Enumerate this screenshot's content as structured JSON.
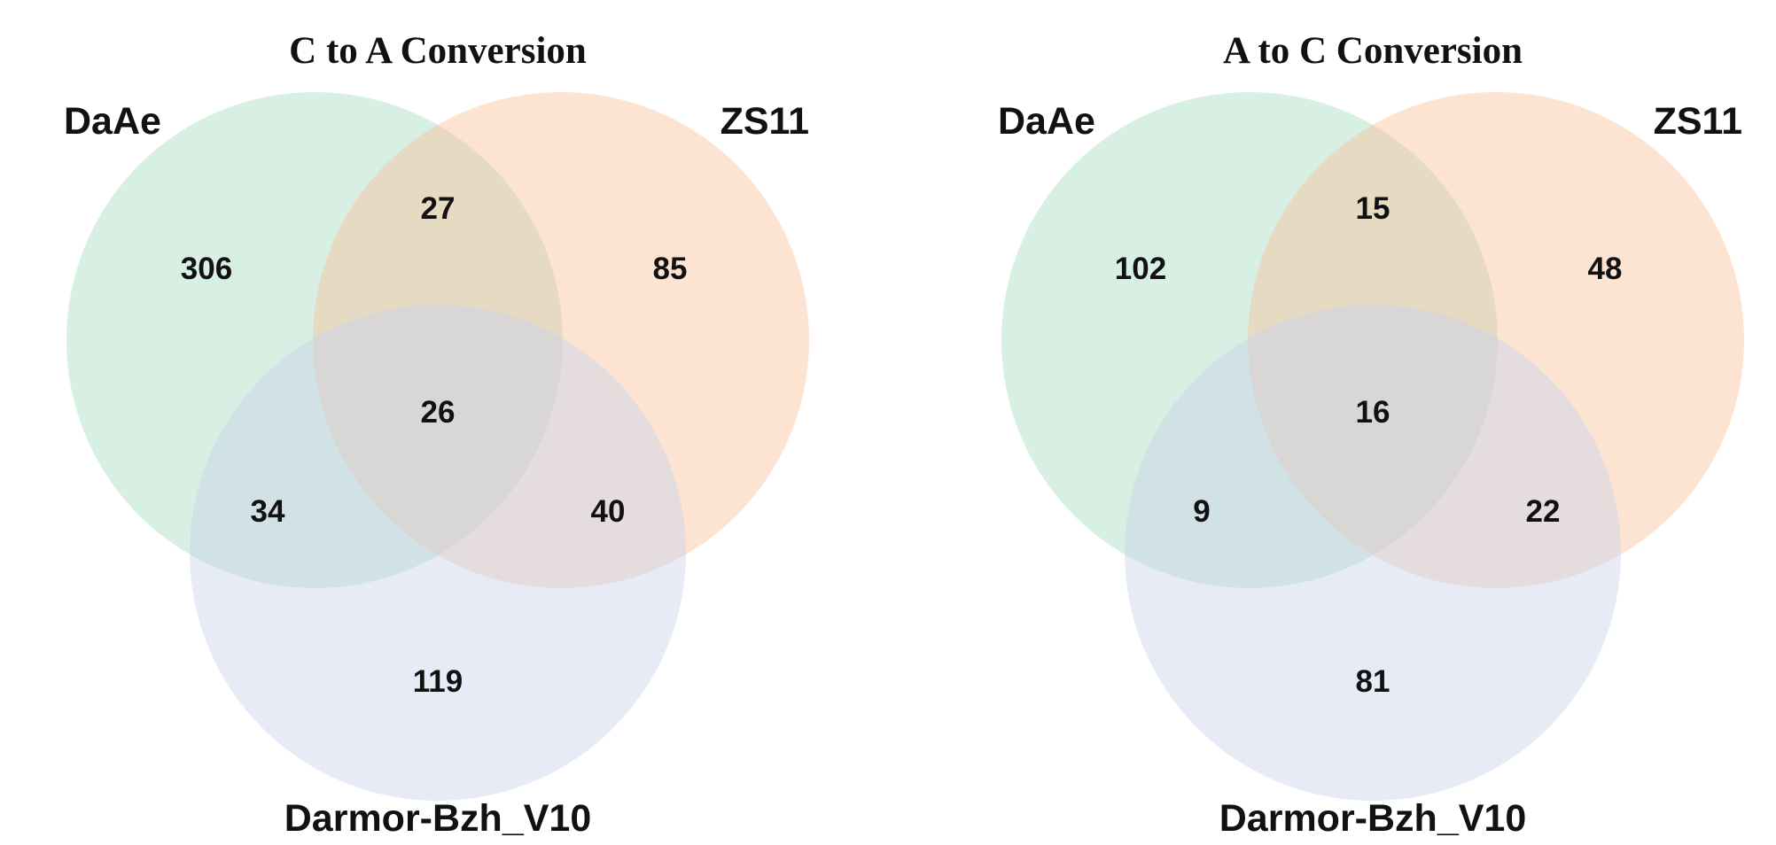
{
  "colors": {
    "DaAe": "#a9dcc4",
    "ZS11": "#f8c29c",
    "Darmor-Bzh_V10": "#c9d2ea",
    "text": "#111111"
  },
  "panels": [
    {
      "title": "C to A Conversion",
      "sets": {
        "DaAe": "DaAe",
        "ZS11": "ZS11",
        "Darmor-Bzh_V10": "Darmor-Bzh_V10"
      },
      "counts": {
        "DaAe_only": "306",
        "ZS11_only": "85",
        "Darmor_only": "119",
        "DaAe_ZS11": "27",
        "DaAe_Darmor": "34",
        "ZS11_Darmor": "40",
        "all_three": "26"
      }
    },
    {
      "title": "A to C Conversion",
      "sets": {
        "DaAe": "DaAe",
        "ZS11": "ZS11",
        "Darmor-Bzh_V10": "Darmor-Bzh_V10"
      },
      "counts": {
        "DaAe_only": "102",
        "ZS11_only": "48",
        "Darmor_only": "81",
        "DaAe_ZS11": "15",
        "DaAe_Darmor": "9",
        "ZS11_Darmor": "22",
        "all_three": "16"
      }
    }
  ]
}
